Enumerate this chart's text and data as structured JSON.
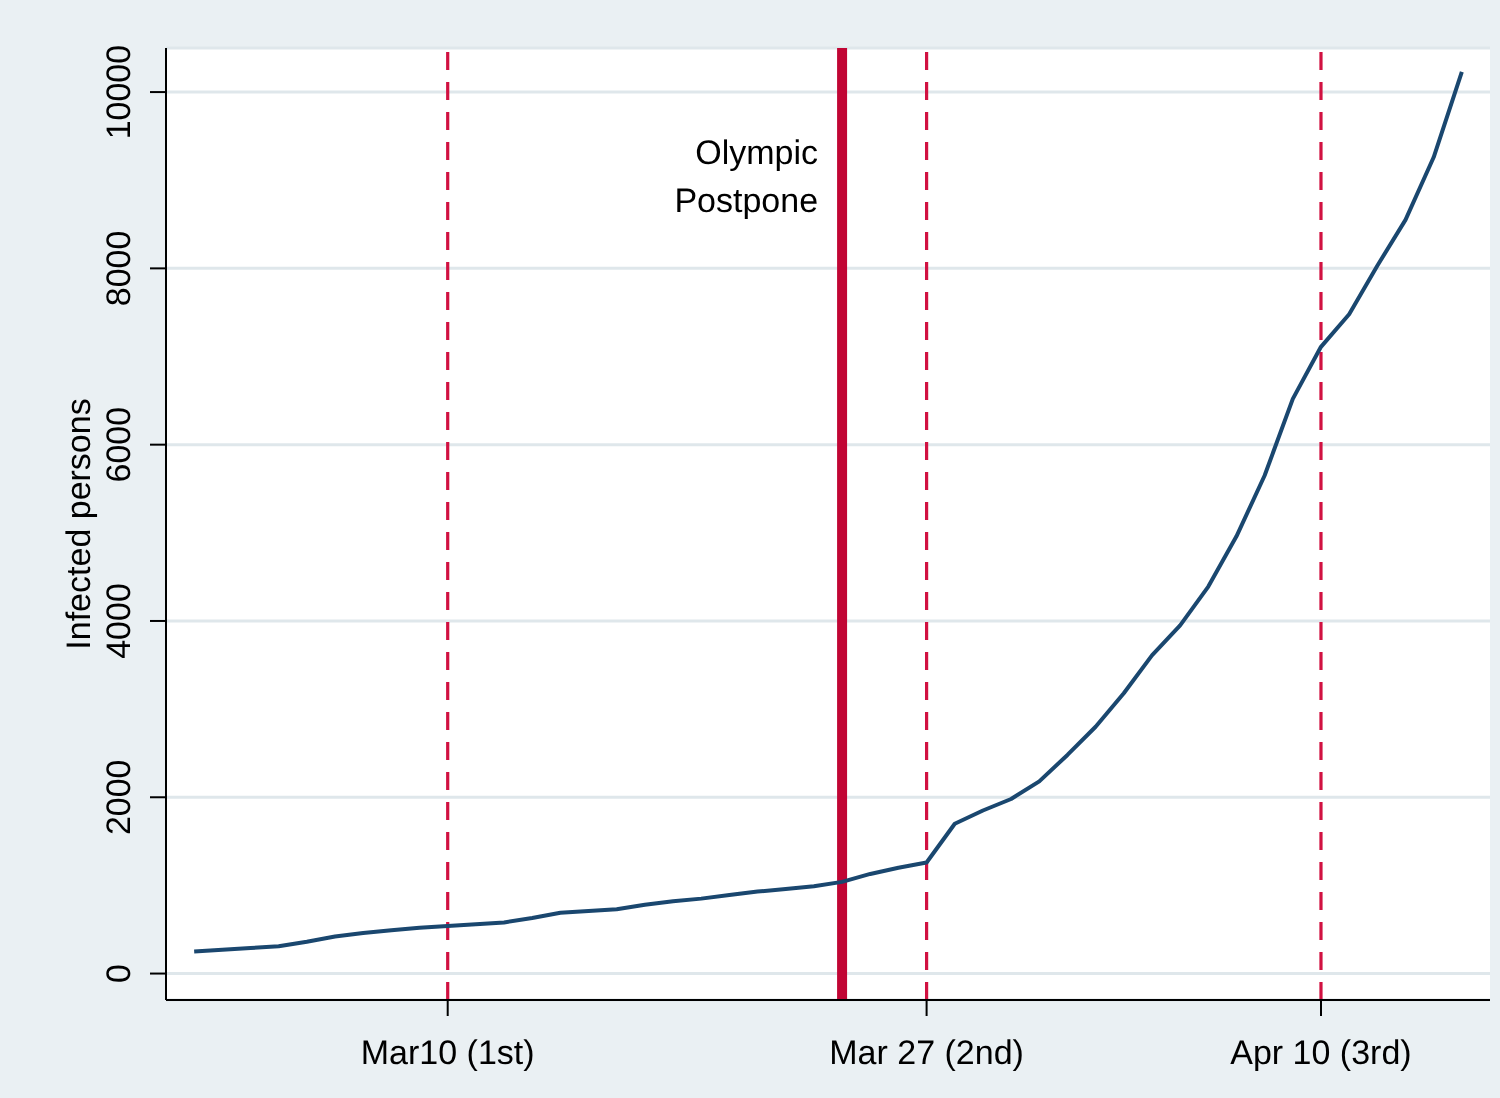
{
  "chart_data": {
    "type": "line",
    "ylabel": "Infected persons",
    "x": [
      "--03-01",
      "--03-02",
      "--03-03",
      "--03-04",
      "--03-05",
      "--03-06",
      "--03-07",
      "--03-08",
      "--03-09",
      "--03-10",
      "--03-11",
      "--03-12",
      "--03-13",
      "--03-14",
      "--03-15",
      "--03-16",
      "--03-17",
      "--03-18",
      "--03-19",
      "--03-20",
      "--03-21",
      "--03-22",
      "--03-23",
      "--03-24",
      "--03-25",
      "--03-26",
      "--03-27",
      "--03-28",
      "--03-29",
      "--03-30",
      "--03-31",
      "--04-01",
      "--04-02",
      "--04-03",
      "--04-04",
      "--04-05",
      "--04-06",
      "--04-07",
      "--04-08",
      "--04-09",
      "--04-10",
      "--04-11",
      "--04-12",
      "--04-13",
      "--04-14",
      "--04-15"
    ],
    "series": [
      {
        "color": "#1a476f",
        "values": [
          250,
          270,
          290,
          310,
          360,
          420,
          460,
          490,
          520,
          540,
          560,
          580,
          630,
          690,
          710,
          730,
          780,
          820,
          850,
          890,
          930,
          960,
          990,
          1040,
          1130,
          1200,
          1260,
          1700,
          1850,
          1980,
          2180,
          2480,
          2800,
          3180,
          3610,
          3950,
          4390,
          4960,
          5650,
          6520,
          7110,
          7480,
          8030,
          8550,
          9260,
          10230
        ]
      }
    ],
    "xlim": [
      "--02-29",
      "--04-16"
    ],
    "xticks": [
      {
        "value": "--03-10",
        "label": "Mar10 (1st)"
      },
      {
        "value": "--03-27",
        "label": "Mar 27 (2nd)"
      },
      {
        "value": "--04-10",
        "label": "Apr 10 (3rd)"
      }
    ],
    "ylim": [
      -300,
      10500
    ],
    "yticks": [
      0,
      2000,
      4000,
      6000,
      8000,
      10000
    ],
    "grid": "y",
    "legend": false,
    "marker": "none",
    "line_style": "solid",
    "ref_lines": [
      {
        "axis": "x",
        "value": "--03-10",
        "color": "#d11141",
        "line_style": "dashed"
      },
      {
        "axis": "x",
        "value": "--03-24",
        "label": "Olympic Postpone",
        "color": "#c10534",
        "line_style": "solid"
      },
      {
        "axis": "x",
        "value": "--03-27",
        "color": "#d11141",
        "line_style": "dashed"
      },
      {
        "axis": "x",
        "value": "--04-10",
        "color": "#d11141",
        "line_style": "dashed"
      }
    ]
  }
}
